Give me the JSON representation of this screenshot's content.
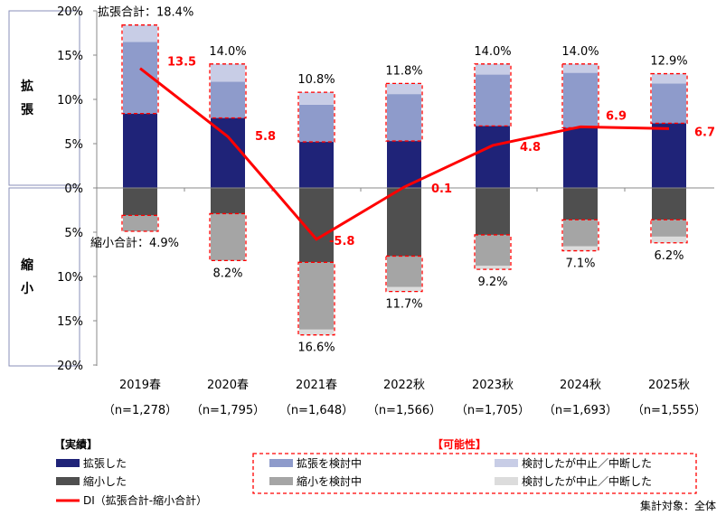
{
  "chart_data": {
    "type": "bar",
    "stacked": true,
    "categories": [
      "2019春",
      "2020春",
      "2021春",
      "2022秋",
      "2023秋",
      "2024秋",
      "2025秋"
    ],
    "sample_sizes": [
      "（n=1,278）",
      "（n=1,795）",
      "（n=1,648）",
      "（n=1,566）",
      "（n=1,705）",
      "（n=1,693）",
      "（n=1,555）"
    ],
    "side_labels": {
      "expand": "拡張",
      "shrink": "縮小"
    },
    "yticks": [
      "20%",
      "15%",
      "10%",
      "5%",
      "0%",
      "5%",
      "10%",
      "15%",
      "20%"
    ],
    "ylim": [
      -20,
      20
    ],
    "series": [
      {
        "name": "拡張した",
        "color": "#1f2378",
        "direction": "up",
        "values": [
          8.4,
          7.9,
          5.2,
          5.3,
          7.0,
          6.8,
          7.3
        ]
      },
      {
        "name": "拡張を検討中",
        "color": "#8e9bcb",
        "direction": "up",
        "values": [
          8.1,
          4.1,
          4.2,
          5.3,
          5.8,
          6.2,
          4.5
        ]
      },
      {
        "name": "検討したが中止／中断した",
        "color": "#c8cde6",
        "direction": "up",
        "values": [
          1.9,
          2.0,
          1.4,
          1.2,
          1.2,
          1.0,
          1.1
        ]
      },
      {
        "name": "縮小した",
        "color": "#4f4f4f",
        "direction": "down",
        "values": [
          3.1,
          2.9,
          8.4,
          7.7,
          5.3,
          3.6,
          3.6
        ]
      },
      {
        "name": "縮小を検討中",
        "color": "#a5a5a5",
        "direction": "down",
        "values": [
          1.8,
          5.3,
          7.6,
          3.5,
          3.5,
          3.0,
          1.9
        ]
      },
      {
        "name": "検討したが中止／中断した",
        "color": "#dcdcdc",
        "direction": "down",
        "values": [
          0.0,
          0.0,
          0.6,
          0.5,
          0.4,
          0.5,
          0.7
        ]
      }
    ],
    "expand_totals": [
      "拡張合計：18.4%",
      "14.0%",
      "10.8%",
      "11.8%",
      "14.0%",
      "14.0%",
      "12.9%"
    ],
    "shrink_totals": [
      "縮小合計：4.9%",
      "8.2%",
      "16.6%",
      "11.7%",
      "9.2%",
      "7.1%",
      "6.2%"
    ],
    "di": {
      "name": "DI（拡張合計-縮小合計）",
      "color": "#ff0000",
      "values": [
        13.5,
        5.8,
        -5.8,
        0.1,
        4.8,
        6.9,
        6.7
      ],
      "labels": [
        "13.5",
        "5.8",
        "-5.8",
        "0.1",
        "4.8",
        "6.9",
        "6.7"
      ]
    },
    "legend": {
      "actual_title": "【実績】",
      "possible_title": "【可能性】"
    },
    "footnote": "集計対象：全体"
  }
}
